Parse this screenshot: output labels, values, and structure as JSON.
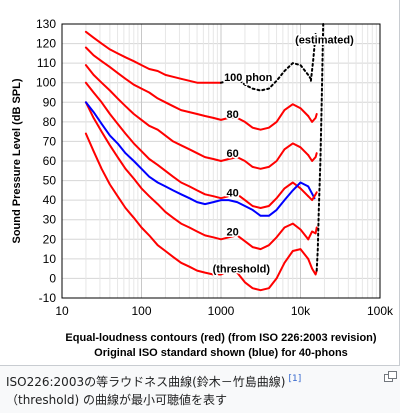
{
  "chart_data": {
    "type": "line",
    "xlabel_line1": "Equal-loudness contours (red) (from ISO 226:2003 revision)",
    "xlabel_line2": "Original ISO standard shown (blue) for 40-phons",
    "ylabel": "Sound Pressure Level (dB SPL)",
    "xscale": "log",
    "xlim": [
      10,
      100000
    ],
    "ylim": [
      -10,
      130
    ],
    "x_tick_labels": [
      "10",
      "100",
      "1000",
      "10k",
      "100k"
    ],
    "x_tick_values": [
      10,
      100,
      1000,
      10000,
      100000
    ],
    "y_ticks": [
      -10,
      0,
      10,
      20,
      30,
      40,
      50,
      60,
      70,
      80,
      90,
      100,
      110,
      120,
      130
    ],
    "grid": true,
    "annotations": [
      {
        "text": "(estimated)",
        "x": 20000,
        "y": 122
      },
      {
        "text": "100 phon",
        "x": 2200,
        "y": 103
      },
      {
        "text": "80",
        "x": 1400,
        "y": 84
      },
      {
        "text": "60",
        "x": 1400,
        "y": 64
      },
      {
        "text": "40",
        "x": 1400,
        "y": 44
      },
      {
        "text": "20",
        "x": 1400,
        "y": 24
      },
      {
        "text": "(threshold)",
        "x": 1800,
        "y": 5
      }
    ],
    "series": [
      {
        "color": "#ff0000",
        "style": "solid",
        "x": [
          20,
          25,
          31.5,
          40,
          50,
          63,
          80,
          100,
          125,
          160,
          200,
          250,
          315,
          400,
          500,
          630,
          800,
          1000,
          1250,
          1600,
          2000,
          2500,
          3150,
          4000,
          5000,
          6300,
          8000,
          10000,
          12500
        ],
        "y": [
          74,
          65,
          56,
          48,
          42,
          36,
          31,
          26,
          22,
          17,
          14,
          11,
          8,
          6,
          4,
          3,
          2,
          2,
          4,
          3,
          -2,
          -5,
          -6,
          -5,
          0,
          8,
          14,
          15,
          10
        ]
      },
      {
        "color": "#ff0000",
        "style": "solid",
        "x": [
          20,
          25,
          31.5,
          40,
          50,
          63,
          80,
          100,
          125,
          160,
          200,
          250,
          315,
          400,
          500,
          630,
          800,
          1000,
          1250,
          1600,
          2000,
          2500,
          3150,
          4000,
          5000,
          6300,
          8000,
          10000,
          12500
        ],
        "y": [
          90,
          82,
          75,
          68,
          62,
          56,
          51,
          46,
          42,
          38,
          34,
          31,
          28,
          26,
          24,
          22,
          21,
          20,
          21,
          22,
          19,
          16,
          15,
          17,
          21,
          26,
          28,
          25,
          20
        ]
      },
      {
        "color": "#ff0000",
        "style": "solid",
        "x": [
          20,
          25,
          31.5,
          40,
          50,
          63,
          80,
          100,
          125,
          160,
          200,
          250,
          315,
          400,
          500,
          630,
          800,
          1000,
          1250,
          1600,
          2000,
          2500,
          3150,
          4000,
          5000,
          6300,
          8000,
          10000,
          12500
        ],
        "y": [
          100,
          95,
          90,
          84,
          79,
          74,
          69,
          65,
          61,
          58,
          55,
          52,
          49,
          47,
          45,
          43,
          42,
          41,
          42,
          43,
          40,
          37,
          36,
          37,
          41,
          46,
          49,
          46,
          42
        ]
      },
      {
        "color": "#ff0000",
        "style": "solid",
        "x": [
          20,
          25,
          31.5,
          40,
          50,
          63,
          80,
          100,
          125,
          160,
          200,
          250,
          315,
          400,
          500,
          630,
          800,
          1000,
          1250,
          1600,
          2000,
          2500,
          3150,
          4000,
          5000,
          6300,
          8000,
          10000,
          12500
        ],
        "y": [
          109,
          104,
          100,
          96,
          92,
          88,
          84,
          81,
          78,
          76,
          73,
          70,
          68,
          66,
          64,
          62,
          61,
          60,
          61,
          62,
          60,
          57,
          56,
          57,
          60,
          66,
          69,
          67,
          63
        ]
      },
      {
        "color": "#ff0000",
        "style": "solid",
        "x": [
          20,
          25,
          31.5,
          40,
          50,
          63,
          80,
          100,
          125,
          160,
          200,
          250,
          315,
          400,
          500,
          630,
          800,
          1000,
          1250,
          1600,
          2000,
          2500,
          3150,
          4000,
          5000,
          6300,
          8000,
          10000,
          12500
        ],
        "y": [
          118,
          114,
          111,
          108,
          105,
          102,
          99,
          97,
          95,
          92,
          90,
          88,
          86,
          85,
          84,
          83,
          82,
          81,
          82,
          82,
          80,
          77,
          76,
          77,
          80,
          86,
          89,
          87,
          83
        ]
      },
      {
        "color": "#ff0000",
        "style": "solid",
        "x": [
          20,
          25,
          31.5,
          40,
          50,
          63,
          80,
          100,
          125,
          160,
          200,
          250,
          315,
          400,
          500,
          630,
          800,
          1000
        ],
        "y": [
          126,
          123,
          120,
          117,
          115,
          113,
          111,
          109,
          107,
          106,
          104,
          103,
          102,
          101,
          100,
          100,
          100,
          100
        ]
      },
      {
        "color": "#000000",
        "style": "dotted",
        "x": [
          1000,
          1250,
          1600,
          2000,
          2500,
          3150,
          4000,
          5000,
          6300,
          8000,
          10000,
          12500,
          14000
        ],
        "y": [
          100,
          101,
          102,
          99,
          97,
          96,
          97,
          101,
          106,
          110,
          109,
          104,
          101
        ]
      },
      {
        "color": "#0000ff",
        "style": "solid",
        "x": [
          20,
          25,
          31.5,
          40,
          50,
          63,
          80,
          100,
          125,
          160,
          200,
          250,
          315,
          400,
          500,
          630,
          800,
          1000,
          1250,
          1600,
          2000,
          2500,
          3150,
          4000,
          5000,
          6300,
          8000,
          10000,
          12500,
          15000
        ],
        "y": [
          90,
          85,
          79,
          73,
          69,
          64,
          60,
          56,
          52,
          49,
          47,
          45,
          43,
          41,
          39,
          38,
          39,
          40,
          40,
          39,
          37,
          35,
          32,
          32,
          35,
          40,
          45,
          49,
          47,
          41
        ]
      },
      {
        "color": "#ff0000",
        "style": "solid",
        "x": [
          12500,
          14000,
          15500,
          16000
        ],
        "y": [
          10,
          5,
          2,
          4
        ]
      },
      {
        "color": "#ff0000",
        "style": "solid",
        "x": [
          12500,
          14000,
          15500,
          16000
        ],
        "y": [
          20,
          24,
          23,
          26
        ]
      },
      {
        "color": "#ff0000",
        "style": "solid",
        "x": [
          12500,
          14000,
          15500,
          16000
        ],
        "y": [
          42,
          40,
          43,
          44
        ]
      },
      {
        "color": "#ff0000",
        "style": "solid",
        "x": [
          12500,
          14000,
          15500,
          16000
        ],
        "y": [
          63,
          60,
          62,
          64
        ]
      },
      {
        "color": "#ff0000",
        "style": "solid",
        "x": [
          12500,
          14000,
          15500,
          16000
        ],
        "y": [
          83,
          80,
          82,
          84
        ]
      },
      {
        "color": "#000000",
        "style": "dotted",
        "x": [
          16000,
          16500,
          17000,
          17800,
          18500,
          19300
        ],
        "y": [
          4,
          15,
          35,
          60,
          90,
          130
        ]
      },
      {
        "color": "#000000",
        "style": "dotted",
        "x": [
          13500,
          14500,
          15500
        ],
        "y": [
          101,
          112,
          125
        ]
      }
    ]
  },
  "caption": {
    "line1": "ISO226:2003の等ラウドネス曲線(鈴木－竹島曲線)",
    "ref": "[1]",
    "line2": "（threshold) の曲線が最小可聴値を表す"
  },
  "icons": {
    "enlarge": "magnify-clip-icon"
  }
}
